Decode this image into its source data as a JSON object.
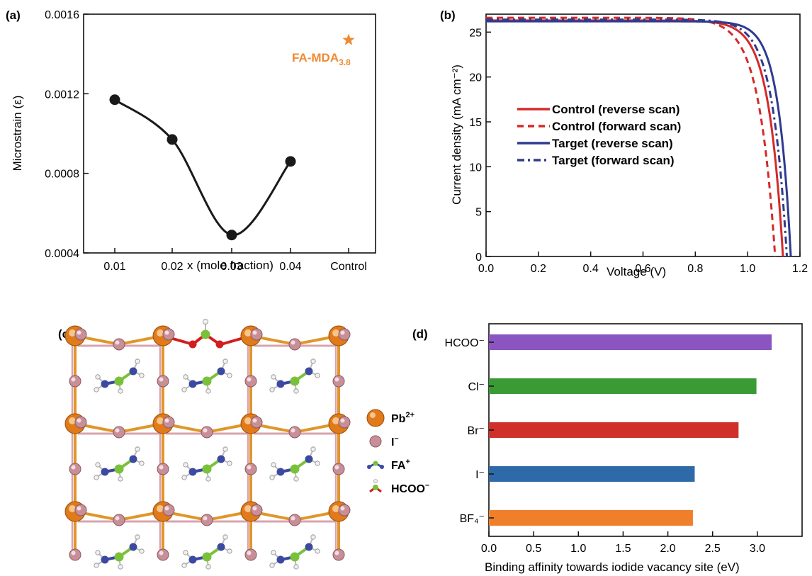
{
  "colors": {
    "axis": "#111111",
    "strain_line": "#1a1a1a",
    "star": "#f08a32",
    "control": "#d42a2a",
    "target": "#2e3b8f",
    "pb": "#e07a1a",
    "iodide": "#c98f98",
    "bond_pb_i": "#e0962a",
    "bond_pink": "#d9a3ad",
    "nitrogen": "#3b4aa0",
    "carbon": "#7ac13a",
    "hydrogen": "#f0f0f0",
    "oxygen": "#d11f1f"
  },
  "chart_data": [
    {
      "panel": "(a)",
      "type": "scatter",
      "xlabel": "x (mole fraction)",
      "ylabel": "Microstrain (ε)",
      "categories": [
        "0.01",
        "0.02",
        "0.03",
        "0.04",
        "Control"
      ],
      "ylim": [
        0.0004,
        0.0016
      ],
      "yticks": [
        "0.0004",
        "0.0008",
        "0.0012",
        "0.0016"
      ],
      "series": [
        {
          "x": [
            0.01,
            0.02,
            0.03,
            0.04
          ],
          "y": [
            0.00117,
            0.00097,
            0.00049,
            0.00086
          ],
          "marker": "circle"
        },
        {
          "x": [
            "Control"
          ],
          "y": [
            0.00147
          ],
          "marker": "star"
        }
      ],
      "annotation": {
        "text": "FA-MDA",
        "subscript": "3.8"
      }
    },
    {
      "panel": "(b)",
      "type": "line",
      "xlabel": "Voltage (V)",
      "ylabel": "Current density (mA cm⁻²)",
      "xlim": [
        0.0,
        1.2
      ],
      "ylim": [
        0,
        27
      ],
      "xticks": [
        "0.0",
        "0.2",
        "0.4",
        "0.6",
        "0.8",
        "1.0",
        "1.2"
      ],
      "yticks": [
        "0",
        "5",
        "10",
        "15",
        "20",
        "25"
      ],
      "legend_position": "center-left",
      "series": [
        {
          "name": "Control (reverse scan)",
          "jsc": 26.3,
          "voc": 1.135,
          "knee": 0.055,
          "style": "solid",
          "color_key": "control"
        },
        {
          "name": "Control (forward scan)",
          "jsc": 26.6,
          "voc": 1.105,
          "knee": 0.062,
          "style": "dashed",
          "color_key": "control"
        },
        {
          "name": "Target (reverse scan)",
          "jsc": 26.2,
          "voc": 1.165,
          "knee": 0.048,
          "style": "solid",
          "color_key": "target"
        },
        {
          "name": "Target (forward scan)",
          "jsc": 26.4,
          "voc": 1.15,
          "knee": 0.055,
          "style": "dashdot",
          "color_key": "target"
        }
      ]
    },
    {
      "panel": "(d)",
      "type": "bar",
      "orientation": "horizontal",
      "xlabel": "Binding affinity towards iodide vacancy site (eV)",
      "xlim": [
        0.0,
        3.5
      ],
      "xticks": [
        "0.0",
        "0.5",
        "1.0",
        "1.5",
        "2.0",
        "2.5",
        "3.0"
      ],
      "bars": [
        {
          "label": "HCOO⁻",
          "value": 3.16,
          "color": "#8a55c0"
        },
        {
          "label": "Cl⁻",
          "value": 2.99,
          "color": "#3a9b35"
        },
        {
          "label": "Br⁻",
          "value": 2.79,
          "color": "#d0302a"
        },
        {
          "label": "I⁻",
          "value": 2.3,
          "color": "#2f6aa8"
        },
        {
          "label": "BF₄⁻",
          "value": 2.28,
          "color": "#f07f2a"
        }
      ]
    }
  ],
  "structure": {
    "panel": "(c)",
    "legend": [
      {
        "key": "pb",
        "label": "Pb",
        "sup": "2+"
      },
      {
        "key": "iodide",
        "label": "I",
        "sup": "–"
      },
      {
        "key": "fa",
        "label": "FA",
        "sup": "+"
      },
      {
        "key": "hcoo",
        "label": "HCOO",
        "sup": "–"
      }
    ]
  }
}
